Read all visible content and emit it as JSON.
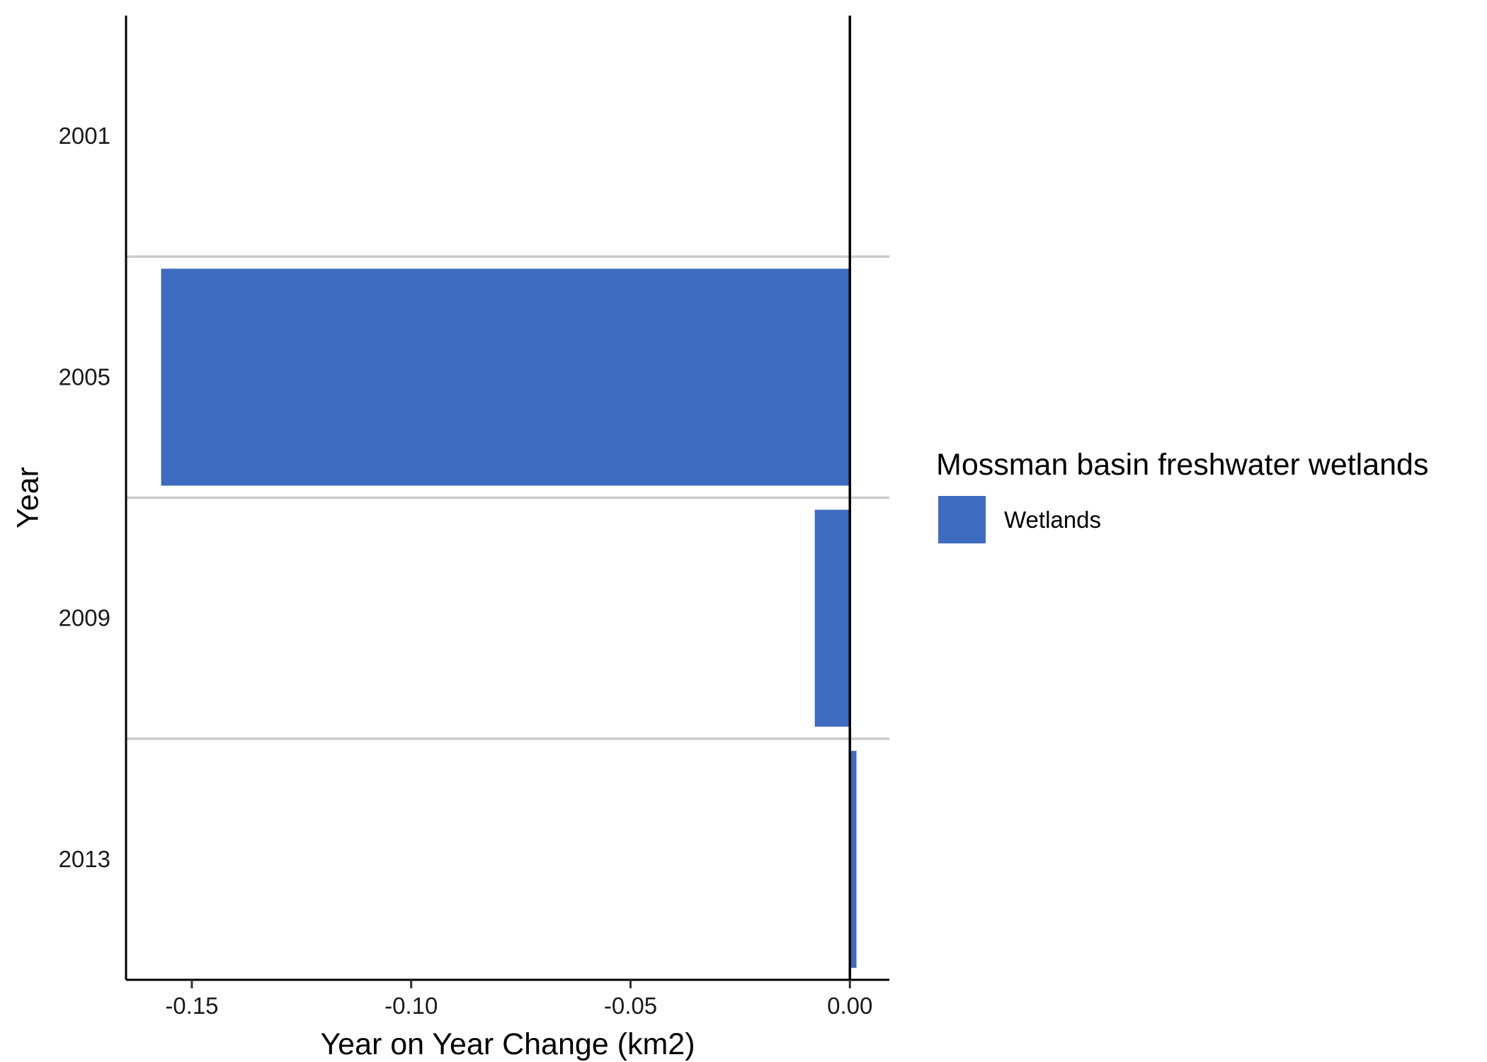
{
  "chart_data": {
    "type": "bar",
    "orientation": "horizontal",
    "categories": [
      "2001",
      "2005",
      "2009",
      "2013"
    ],
    "series": [
      {
        "name": "Wetlands",
        "values": [
          0,
          -0.157,
          -0.008,
          0.0015
        ],
        "color": "#3d6bbf"
      }
    ],
    "title": "",
    "xlabel": "Year on Year Change (km2)",
    "ylabel": "Year",
    "xlim": [
      -0.165,
      0.009
    ],
    "xticks": [
      -0.15,
      -0.1,
      -0.05,
      0.0
    ],
    "xtick_labels": [
      "-0.15",
      "-0.10",
      "-0.05",
      "0.00"
    ],
    "grid": "horizontal lines between categories",
    "zero_line": true,
    "legend": {
      "title": "Mossman basin freshwater wetlands",
      "placement": "right",
      "entries": [
        {
          "label": "Wetlands",
          "color": "#3d6bbf"
        }
      ]
    }
  }
}
